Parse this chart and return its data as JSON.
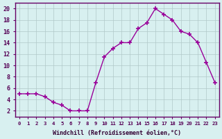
{
  "x": [
    0,
    1,
    2,
    3,
    4,
    5,
    6,
    7,
    8,
    9,
    10,
    11,
    12,
    13,
    14,
    15,
    16,
    17,
    18,
    19,
    20,
    21,
    22,
    23
  ],
  "y": [
    5,
    5,
    5,
    4.5,
    3.5,
    3,
    2,
    2,
    2,
    7,
    11.5,
    13,
    14,
    14,
    16.5,
    17.5,
    20,
    19,
    18,
    16,
    15.5,
    14,
    10.5,
    7
  ],
  "line_color": "#990099",
  "marker": "+",
  "marker_size": 5,
  "bg_color": "#d8f0f0",
  "grid_color": "#b0c8c8",
  "xlabel": "Windchill (Refroidissement éolien,°C)",
  "yticks": [
    2,
    4,
    6,
    8,
    10,
    12,
    14,
    16,
    18,
    20
  ],
  "xlim": [
    -0.5,
    23.5
  ],
  "ylim": [
    1,
    21
  ]
}
